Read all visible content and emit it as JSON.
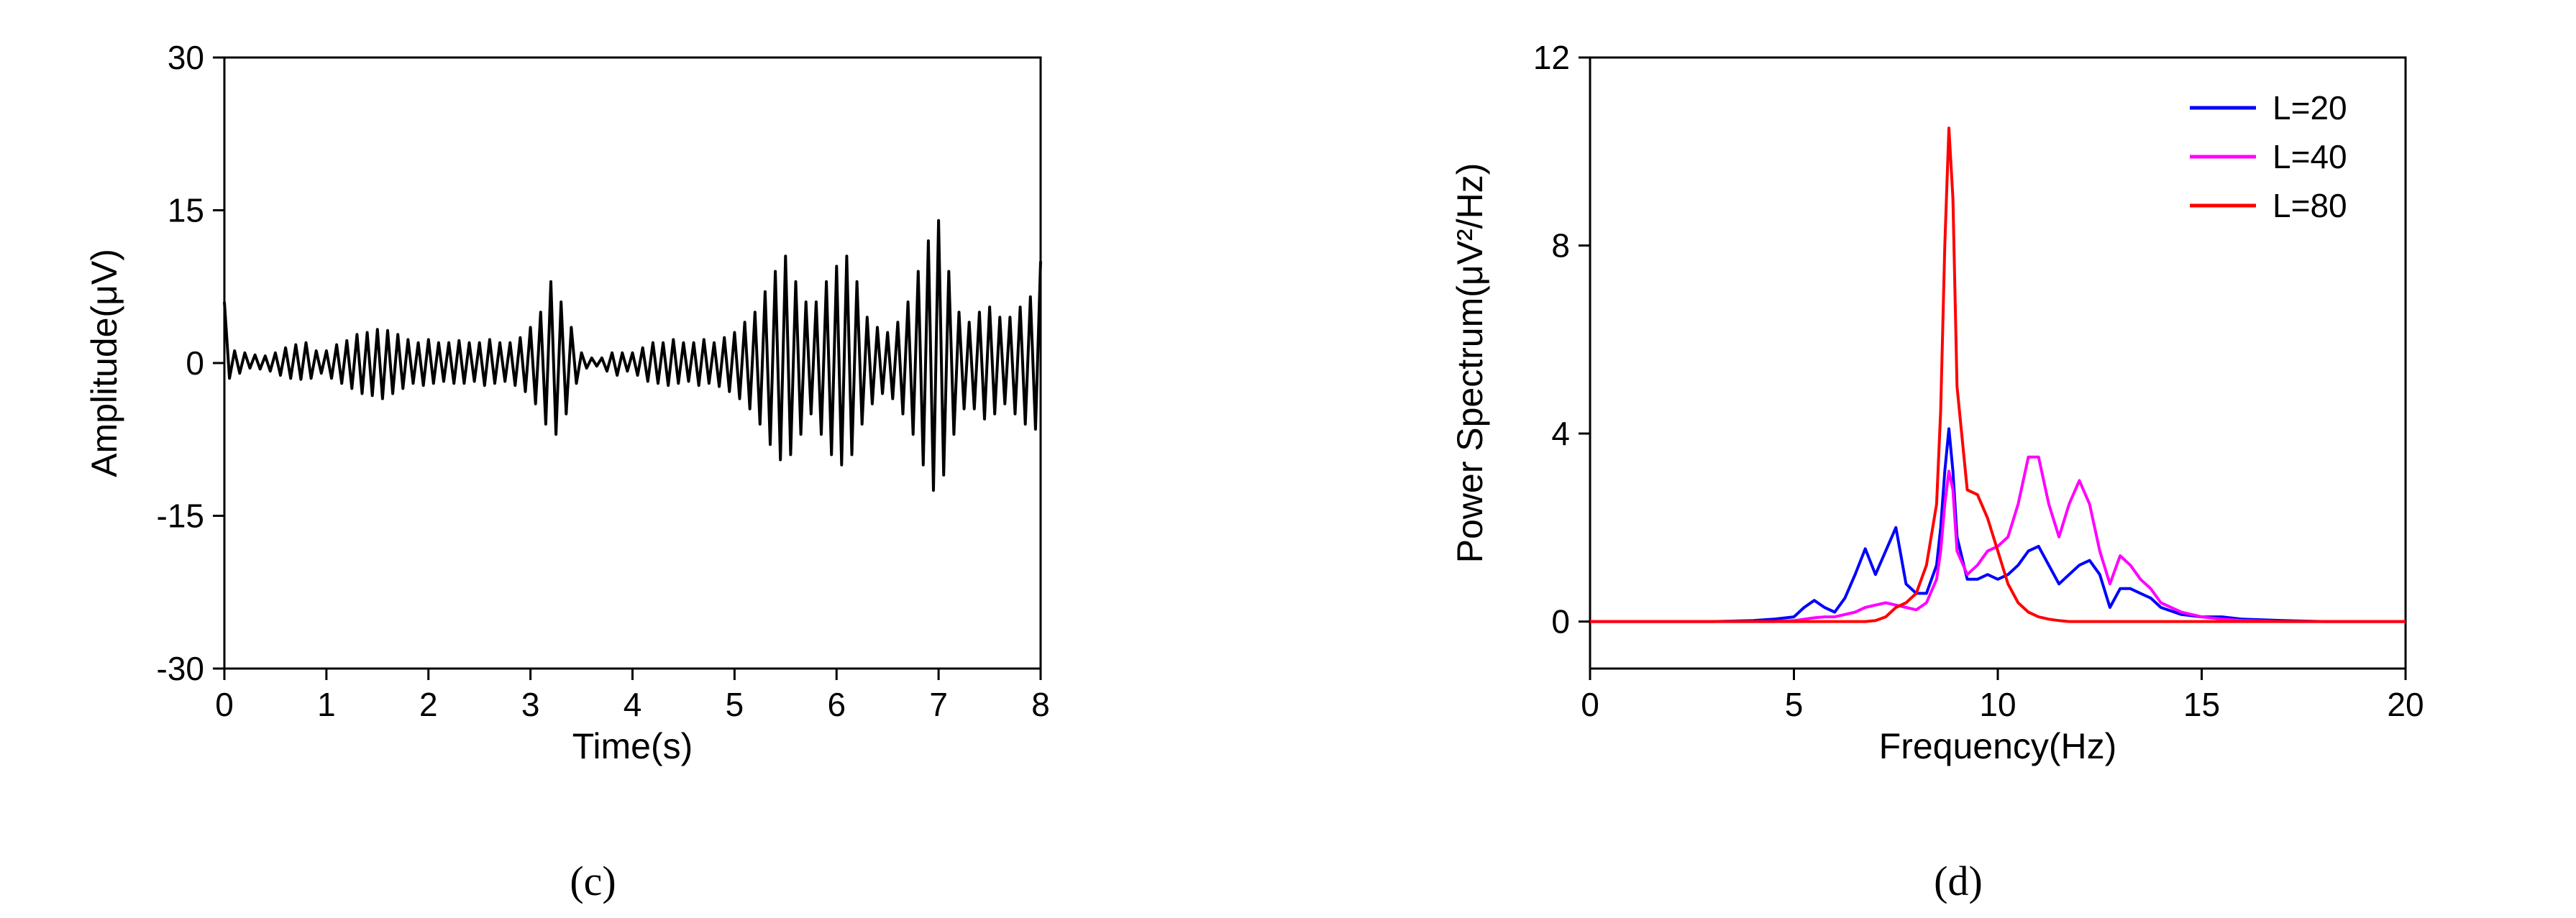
{
  "chart_data": [
    {
      "type": "line",
      "caption": "(c)",
      "xlabel": "Time(s)",
      "ylabel": "Amplitude(μV)",
      "xlim": [
        0,
        8
      ],
      "ylim": [
        -30,
        30
      ],
      "xticks": [
        0,
        1,
        2,
        3,
        4,
        5,
        6,
        7,
        8
      ],
      "yticks": [
        -30,
        -15,
        0,
        15,
        30
      ],
      "color": "#000000",
      "x": [
        0,
        0.05,
        0.1,
        0.15,
        0.2,
        0.25,
        0.3,
        0.35,
        0.4,
        0.45,
        0.5,
        0.55,
        0.6,
        0.65,
        0.7,
        0.75,
        0.8,
        0.85,
        0.9,
        0.95,
        1,
        1.05,
        1.1,
        1.15,
        1.2,
        1.25,
        1.3,
        1.35,
        1.4,
        1.45,
        1.5,
        1.55,
        1.6,
        1.65,
        1.7,
        1.75,
        1.8,
        1.85,
        1.9,
        1.95,
        2,
        2.05,
        2.1,
        2.15,
        2.2,
        2.25,
        2.3,
        2.35,
        2.4,
        2.45,
        2.5,
        2.55,
        2.6,
        2.65,
        2.7,
        2.75,
        2.8,
        2.85,
        2.9,
        2.95,
        3,
        3.05,
        3.1,
        3.15,
        3.2,
        3.25,
        3.3,
        3.35,
        3.4,
        3.45,
        3.5,
        3.55,
        3.6,
        3.65,
        3.7,
        3.75,
        3.8,
        3.85,
        3.9,
        3.95,
        4,
        4.05,
        4.1,
        4.15,
        4.2,
        4.25,
        4.3,
        4.35,
        4.4,
        4.45,
        4.5,
        4.55,
        4.6,
        4.65,
        4.7,
        4.75,
        4.8,
        4.85,
        4.9,
        4.95,
        5,
        5.05,
        5.1,
        5.15,
        5.2,
        5.25,
        5.3,
        5.35,
        5.4,
        5.45,
        5.5,
        5.55,
        5.6,
        5.65,
        5.7,
        5.75,
        5.8,
        5.85,
        5.9,
        5.95,
        6,
        6.05,
        6.1,
        6.15,
        6.2,
        6.25,
        6.3,
        6.35,
        6.4,
        6.45,
        6.5,
        6.55,
        6.6,
        6.65,
        6.7,
        6.75,
        6.8,
        6.85,
        6.9,
        6.95,
        7,
        7.05,
        7.1,
        7.15,
        7.2,
        7.25,
        7.3,
        7.35,
        7.4,
        7.45,
        7.5,
        7.55,
        7.6,
        7.65,
        7.7,
        7.75,
        7.8,
        7.85,
        7.9,
        7.95,
        8
      ],
      "values": [
        6,
        -1.5,
        1.2,
        -1,
        1,
        -0.5,
        0.8,
        -0.6,
        0.7,
        -0.8,
        1,
        -1.2,
        1.5,
        -1.5,
        1.8,
        -1.6,
        2,
        -1.5,
        1.2,
        -1,
        1.2,
        -1.5,
        1.8,
        -2,
        2.2,
        -2.5,
        2.8,
        -3,
        3,
        -3.2,
        3.3,
        -3.5,
        3.2,
        -3,
        2.8,
        -2.5,
        2.3,
        -2,
        2,
        -2.2,
        2.3,
        -2,
        2,
        -1.8,
        2,
        -2,
        2.2,
        -2,
        2,
        -1.8,
        2,
        -2.2,
        2.3,
        -2,
        2,
        -1.8,
        2,
        -2.2,
        2.5,
        -2.8,
        3.5,
        -4,
        5,
        -6,
        8,
        -7,
        6,
        -5,
        3.5,
        -2,
        1,
        -0.5,
        0.5,
        -0.3,
        0.5,
        -0.8,
        1,
        -1.2,
        1,
        -0.8,
        1,
        -1.2,
        1.5,
        -1.8,
        2,
        -2,
        2,
        -2.2,
        2.3,
        -2,
        2,
        -1.8,
        2,
        -2.2,
        2.3,
        -2,
        2,
        -2.3,
        2.5,
        -2.8,
        3,
        -3.5,
        4,
        -4.5,
        5,
        -6,
        7,
        -8,
        9,
        -9.5,
        10.5,
        -9,
        8,
        -7,
        6,
        -5,
        6,
        -7,
        8,
        -9,
        9.5,
        -10,
        10.5,
        -9,
        8,
        -6,
        4.5,
        -4,
        3.5,
        -3,
        3,
        -3.5,
        4,
        -5,
        6,
        -7,
        9,
        -10,
        12,
        -12.5,
        14,
        -11,
        9,
        -7,
        5,
        -4.5,
        4,
        -4.5,
        5,
        -5.5,
        5.5,
        -5,
        4.5,
        -4,
        4.5,
        -5,
        5.5,
        -6,
        6.5,
        -6.5,
        10
      ]
    },
    {
      "type": "line",
      "caption": "(d)",
      "xlabel": "Frequency(Hz)",
      "ylabel": "Power Spectrum(μV²/Hz)",
      "xlim": [
        0,
        20
      ],
      "ylim": [
        -1,
        12
      ],
      "xticks": [
        0,
        5,
        10,
        15,
        20
      ],
      "yticks": [
        0,
        4,
        8,
        12
      ],
      "legend": "top-right",
      "x": [
        0,
        2,
        3,
        4,
        4.5,
        5,
        5.25,
        5.5,
        5.75,
        6,
        6.25,
        6.5,
        6.75,
        7,
        7.25,
        7.5,
        7.75,
        8,
        8.25,
        8.5,
        8.6,
        8.7,
        8.8,
        8.9,
        9,
        9.25,
        9.5,
        9.75,
        10,
        10.25,
        10.5,
        10.75,
        11,
        11.25,
        11.5,
        11.75,
        12,
        12.25,
        12.5,
        12.75,
        13,
        13.25,
        13.5,
        13.75,
        14,
        14.5,
        15,
        15.5,
        16,
        17,
        18,
        20
      ],
      "series": [
        {
          "name": "L=20",
          "color": "#0000ff",
          "values": [
            0,
            0,
            0,
            0.02,
            0.05,
            0.1,
            0.3,
            0.45,
            0.3,
            0.2,
            0.5,
            1.0,
            1.55,
            1.0,
            1.5,
            2.0,
            0.8,
            0.6,
            0.6,
            1.2,
            2.0,
            3.2,
            4.1,
            3.2,
            1.8,
            0.9,
            0.9,
            1.0,
            0.9,
            1.0,
            1.2,
            1.5,
            1.6,
            1.2,
            0.8,
            1.0,
            1.2,
            1.3,
            1.0,
            0.3,
            0.7,
            0.7,
            0.6,
            0.5,
            0.3,
            0.15,
            0.1,
            0.1,
            0.05,
            0.02,
            0,
            0
          ]
        },
        {
          "name": "L=40",
          "color": "#ff00ff",
          "values": [
            0,
            0,
            0,
            0,
            0,
            0.02,
            0.05,
            0.08,
            0.1,
            0.1,
            0.15,
            0.2,
            0.3,
            0.35,
            0.4,
            0.35,
            0.3,
            0.25,
            0.4,
            0.9,
            1.5,
            2.5,
            3.2,
            2.8,
            1.5,
            1.0,
            1.2,
            1.5,
            1.6,
            1.8,
            2.5,
            3.5,
            3.5,
            2.5,
            1.8,
            2.5,
            3.0,
            2.5,
            1.5,
            0.8,
            1.4,
            1.2,
            0.9,
            0.7,
            0.4,
            0.2,
            0.1,
            0.05,
            0.02,
            0,
            0,
            0
          ]
        },
        {
          "name": "L=80",
          "color": "#ff0000",
          "values": [
            0,
            0,
            0,
            0,
            0,
            0,
            0,
            0,
            0,
            0,
            0,
            0,
            0,
            0.02,
            0.1,
            0.3,
            0.4,
            0.6,
            1.2,
            2.5,
            4.5,
            8.0,
            10.5,
            9.0,
            5.0,
            2.8,
            2.7,
            2.2,
            1.5,
            0.8,
            0.4,
            0.2,
            0.1,
            0.05,
            0.02,
            0,
            0,
            0,
            0,
            0,
            0,
            0,
            0,
            0,
            0,
            0,
            0,
            0,
            0,
            0,
            0,
            0
          ]
        }
      ]
    }
  ]
}
